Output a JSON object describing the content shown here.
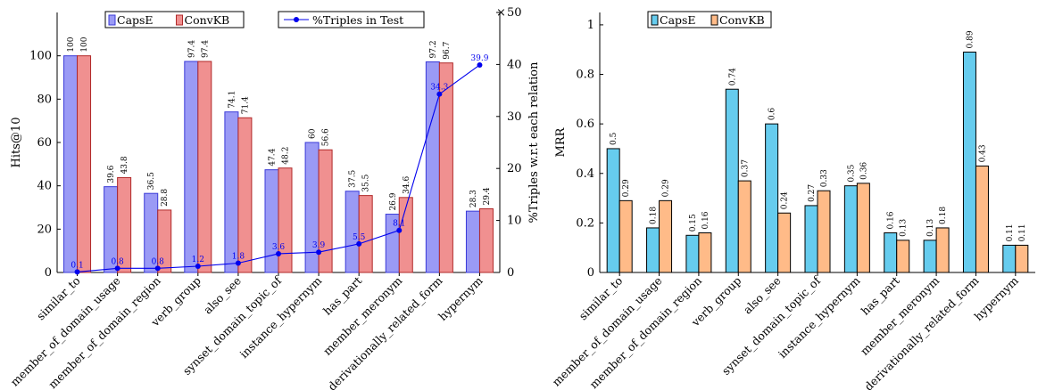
{
  "colors": {
    "capse_left": "#9a9af5",
    "capse_left_edge": "#3a3ad8",
    "convkb_left": "#f09090",
    "convkb_left_edge": "#b02828",
    "capse_right": "#66ccee",
    "convkb_right": "#ffbb88",
    "line": "#0000ee"
  },
  "chart_data": [
    {
      "type": "bar",
      "categories": [
        "similar_to",
        "member_of_domain_usage",
        "member_of_domain_region",
        "verb_group",
        "also_see",
        "synset_domain_topic_of",
        "instance_hypernym",
        "has_part",
        "member_meronym",
        "derivationally_related_form",
        "hypernym"
      ],
      "series": [
        {
          "name": "CapsE",
          "values": [
            100,
            39.6,
            36.5,
            97.4,
            74.1,
            47.4,
            60,
            37.5,
            26.9,
            97.2,
            28.3
          ],
          "labels": [
            "100",
            "39.6",
            "36.5",
            "97.4",
            "74.1",
            "47.4",
            "60",
            "37.5",
            "26.9",
            "97.2",
            "28.3"
          ]
        },
        {
          "name": "ConvKB",
          "values": [
            100,
            43.8,
            28.8,
            97.4,
            71.4,
            48.2,
            56.6,
            35.5,
            34.6,
            96.7,
            29.4
          ],
          "labels": [
            "100",
            "43.8",
            "28.8",
            "97.4",
            "71.4",
            "48.2",
            "56.6",
            "35.5",
            "34.6",
            "96.7",
            "29.4"
          ]
        }
      ],
      "line_series": {
        "name": "%Triples in Test",
        "axis": "right",
        "values": [
          0.1,
          0.8,
          0.8,
          1.2,
          1.8,
          3.6,
          3.9,
          5.5,
          8.1,
          34.3,
          39.9
        ],
        "labels": [
          "0.1",
          "0.8",
          "0.8",
          "1.2",
          "1.8",
          "3.6",
          "3.9",
          "5.5",
          "8.1",
          "34.3",
          "39.9"
        ]
      },
      "ylabel": "Hits@10",
      "y2label": "%Triples w.r.t each relation",
      "ylim": [
        0,
        120
      ],
      "yticks": [
        "0",
        "20",
        "40",
        "60",
        "80",
        "100"
      ],
      "y2lim": [
        0,
        50
      ],
      "y2ticks": [
        "0",
        "10",
        "20",
        "30",
        "40",
        "50"
      ],
      "legend": {
        "bar_placement": "top-left",
        "line_placement": "top-right"
      },
      "grid": false
    },
    {
      "type": "bar",
      "categories": [
        "similar_to",
        "member_of_domain_usage",
        "member_of_domain_region",
        "verb_group",
        "also_see",
        "synset_domain_topic_of",
        "instance_hypernym",
        "has_part",
        "member_meronym",
        "derivationally_related_form",
        "hypernym"
      ],
      "series": [
        {
          "name": "CapsE",
          "values": [
            0.5,
            0.18,
            0.15,
            0.74,
            0.6,
            0.27,
            0.35,
            0.16,
            0.13,
            0.89,
            0.11
          ],
          "labels": [
            "0.5",
            "0.18",
            "0.15",
            "0.74",
            "0.6",
            "0.27",
            "0.35",
            "0.16",
            "0.13",
            "0.89",
            "0.11"
          ]
        },
        {
          "name": "ConvKB",
          "values": [
            0.29,
            0.29,
            0.16,
            0.37,
            0.24,
            0.33,
            0.36,
            0.13,
            0.18,
            0.43,
            0.11
          ],
          "labels": [
            "0.29",
            "0.29",
            "0.16",
            "0.37",
            "0.24",
            "0.33",
            "0.36",
            "0.13",
            "0.18",
            "0.43",
            "0.11"
          ]
        }
      ],
      "ylabel": "MRR",
      "ylim": [
        0,
        1.05
      ],
      "yticks": [
        "0",
        "0.2",
        "0.4",
        "0.6",
        "0.8",
        "1"
      ],
      "legend": {
        "placement": "top-left"
      },
      "grid": false
    }
  ]
}
